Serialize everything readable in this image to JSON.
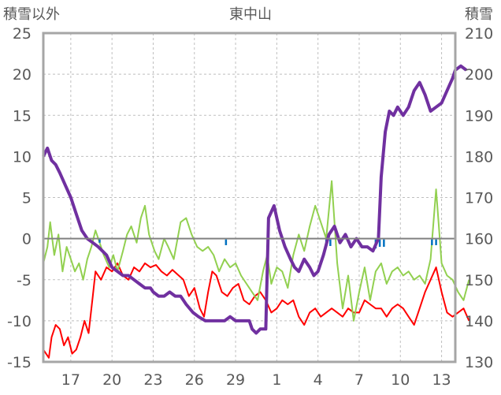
{
  "chart_data": {
    "type": "line",
    "title": "東中山",
    "left_axis_label": "積雪以外",
    "right_axis_label": "積雪",
    "y_left_ticks": [
      25,
      20,
      15,
      10,
      5,
      0,
      -5,
      -10,
      -15
    ],
    "y_left_range": [
      -15,
      25
    ],
    "y_right_ticks": [
      210,
      200,
      190,
      180,
      170,
      160,
      150,
      140,
      130
    ],
    "y_right_range": [
      130,
      210
    ],
    "x_tick_labels": [
      "17",
      "20",
      "23",
      "26",
      "29",
      "1",
      "4",
      "7",
      "10",
      "13"
    ],
    "x_range": [
      0,
      30
    ],
    "x_tick_positions": [
      2,
      5,
      8,
      11,
      14,
      17,
      20,
      23,
      26,
      29
    ],
    "grid": true,
    "colors": {
      "snow_depth": "#7030a0",
      "series_red": "#ff0000",
      "series_green": "#92d050",
      "series_blue": "#0070c0",
      "frame": "#a6a6a6",
      "zero_line": "#808080"
    },
    "series": [
      {
        "axis": "right",
        "color": "#7030a0",
        "points": [
          [
            0.0,
            180
          ],
          [
            0.3,
            182
          ],
          [
            0.6,
            179
          ],
          [
            0.9,
            178
          ],
          [
            1.2,
            176
          ],
          [
            1.6,
            173
          ],
          [
            2.0,
            170
          ],
          [
            2.4,
            166
          ],
          [
            2.8,
            162
          ],
          [
            3.2,
            160
          ],
          [
            3.6,
            159
          ],
          [
            4.0,
            158
          ],
          [
            4.3,
            157
          ],
          [
            4.6,
            156
          ],
          [
            5.0,
            153
          ],
          [
            5.4,
            152
          ],
          [
            5.8,
            151
          ],
          [
            6.2,
            151
          ],
          [
            6.6,
            150
          ],
          [
            7.0,
            149
          ],
          [
            7.4,
            148
          ],
          [
            7.8,
            148
          ],
          [
            8.0,
            147
          ],
          [
            8.4,
            146
          ],
          [
            8.8,
            146
          ],
          [
            9.2,
            147
          ],
          [
            9.6,
            146
          ],
          [
            10.0,
            146
          ],
          [
            10.4,
            144
          ],
          [
            10.9,
            142
          ],
          [
            11.3,
            141
          ],
          [
            11.8,
            140
          ],
          [
            12.3,
            140
          ],
          [
            12.8,
            140
          ],
          [
            13.2,
            140
          ],
          [
            13.6,
            141
          ],
          [
            14.0,
            140
          ],
          [
            14.4,
            140
          ],
          [
            15.0,
            140
          ],
          [
            15.2,
            138
          ],
          [
            15.5,
            137
          ],
          [
            15.8,
            138
          ],
          [
            16.2,
            138
          ],
          [
            16.4,
            165
          ],
          [
            16.8,
            168
          ],
          [
            17.2,
            162
          ],
          [
            17.6,
            158
          ],
          [
            18.0,
            155
          ],
          [
            18.3,
            153
          ],
          [
            18.6,
            152
          ],
          [
            19.0,
            155
          ],
          [
            19.4,
            153
          ],
          [
            19.7,
            151
          ],
          [
            20.0,
            152
          ],
          [
            20.4,
            156
          ],
          [
            20.8,
            161
          ],
          [
            21.2,
            163
          ],
          [
            21.6,
            159
          ],
          [
            22.0,
            161
          ],
          [
            22.4,
            158
          ],
          [
            22.8,
            160
          ],
          [
            23.2,
            158
          ],
          [
            23.6,
            158
          ],
          [
            24.0,
            157
          ],
          [
            24.4,
            160
          ],
          [
            24.6,
            175
          ],
          [
            24.9,
            186
          ],
          [
            25.2,
            191
          ],
          [
            25.5,
            190
          ],
          [
            25.8,
            192
          ],
          [
            26.2,
            190
          ],
          [
            26.6,
            192
          ],
          [
            27.0,
            196
          ],
          [
            27.4,
            198
          ],
          [
            27.8,
            195
          ],
          [
            28.2,
            191
          ],
          [
            28.6,
            192
          ],
          [
            29.0,
            193
          ],
          [
            29.4,
            196
          ],
          [
            29.8,
            199
          ],
          [
            30.0,
            201
          ],
          [
            30.4,
            202
          ],
          [
            30.8,
            201
          ]
        ]
      },
      {
        "axis": "left",
        "color": "#ff0000",
        "points": [
          [
            0.0,
            -13.5
          ],
          [
            0.4,
            -14.5
          ],
          [
            0.6,
            -12
          ],
          [
            0.9,
            -10.5
          ],
          [
            1.2,
            -11
          ],
          [
            1.5,
            -13
          ],
          [
            1.8,
            -12
          ],
          [
            2.1,
            -14
          ],
          [
            2.4,
            -13.5
          ],
          [
            2.7,
            -12
          ],
          [
            3.0,
            -10
          ],
          [
            3.3,
            -11.5
          ],
          [
            3.6,
            -7
          ],
          [
            3.8,
            -4
          ],
          [
            4.2,
            -5
          ],
          [
            4.6,
            -3.5
          ],
          [
            5.0,
            -4
          ],
          [
            5.4,
            -3
          ],
          [
            5.8,
            -4.5
          ],
          [
            6.2,
            -5
          ],
          [
            6.6,
            -3.5
          ],
          [
            7.0,
            -4
          ],
          [
            7.4,
            -3
          ],
          [
            7.8,
            -3.5
          ],
          [
            8.2,
            -3.2
          ],
          [
            8.6,
            -4
          ],
          [
            9.0,
            -4.5
          ],
          [
            9.4,
            -3.8
          ],
          [
            10.2,
            -5
          ],
          [
            10.6,
            -7
          ],
          [
            11.0,
            -6
          ],
          [
            11.4,
            -8.5
          ],
          [
            11.7,
            -9.5
          ],
          [
            12.0,
            -6.5
          ],
          [
            12.3,
            -4
          ],
          [
            12.6,
            -4.5
          ],
          [
            13.0,
            -6.5
          ],
          [
            13.4,
            -7
          ],
          [
            13.8,
            -6
          ],
          [
            14.2,
            -5.5
          ],
          [
            14.6,
            -7.5
          ],
          [
            15.0,
            -8
          ],
          [
            15.4,
            -7
          ],
          [
            15.8,
            -6.5
          ],
          [
            16.2,
            -7.5
          ],
          [
            16.6,
            -9
          ],
          [
            17.0,
            -8.5
          ],
          [
            17.4,
            -7.5
          ],
          [
            17.8,
            -8
          ],
          [
            18.2,
            -7.5
          ],
          [
            18.6,
            -9.5
          ],
          [
            19.0,
            -10.5
          ],
          [
            19.4,
            -9
          ],
          [
            19.8,
            -8.5
          ],
          [
            20.2,
            -9.5
          ],
          [
            20.6,
            -9
          ],
          [
            21.0,
            -8.5
          ],
          [
            21.4,
            -9
          ],
          [
            21.8,
            -9.5
          ],
          [
            22.2,
            -8.5
          ],
          [
            22.6,
            -9
          ],
          [
            23.0,
            -9
          ],
          [
            23.4,
            -7.5
          ],
          [
            23.8,
            -8
          ],
          [
            24.2,
            -8.5
          ],
          [
            24.6,
            -8.5
          ],
          [
            25.0,
            -9.5
          ],
          [
            25.4,
            -8.5
          ],
          [
            25.8,
            -8
          ],
          [
            26.2,
            -8.5
          ],
          [
            26.6,
            -9.5
          ],
          [
            27.0,
            -10.5
          ],
          [
            27.4,
            -8.5
          ],
          [
            27.8,
            -6.5
          ],
          [
            28.2,
            -5
          ],
          [
            28.6,
            -3.5
          ],
          [
            29.0,
            -6.5
          ],
          [
            29.4,
            -9
          ],
          [
            29.8,
            -9.5
          ],
          [
            30.2,
            -9
          ],
          [
            30.6,
            -8.5
          ],
          [
            31.0,
            -10
          ]
        ]
      },
      {
        "axis": "left",
        "color": "#92d050",
        "points": [
          [
            0.0,
            -3
          ],
          [
            0.3,
            -1
          ],
          [
            0.5,
            2
          ],
          [
            0.8,
            -2
          ],
          [
            1.1,
            0.5
          ],
          [
            1.4,
            -4
          ],
          [
            1.7,
            -1
          ],
          [
            2.0,
            -2.5
          ],
          [
            2.3,
            -4
          ],
          [
            2.6,
            -3
          ],
          [
            2.9,
            -5
          ],
          [
            3.2,
            -2.5
          ],
          [
            3.5,
            -1
          ],
          [
            3.8,
            1
          ],
          [
            4.1,
            -0.5
          ],
          [
            4.4,
            -2
          ],
          [
            4.8,
            -3.5
          ],
          [
            5.1,
            -2
          ],
          [
            5.4,
            -4
          ],
          [
            5.8,
            -1.5
          ],
          [
            6.1,
            0.5
          ],
          [
            6.4,
            1.5
          ],
          [
            6.8,
            -0.5
          ],
          [
            7.1,
            2.5
          ],
          [
            7.4,
            4
          ],
          [
            7.7,
            0.5
          ],
          [
            8.1,
            -1.5
          ],
          [
            8.4,
            -2.5
          ],
          [
            8.8,
            0
          ],
          [
            9.1,
            -1
          ],
          [
            9.5,
            -2.5
          ],
          [
            10.0,
            2
          ],
          [
            10.4,
            2.5
          ],
          [
            10.8,
            0.5
          ],
          [
            11.2,
            -1
          ],
          [
            11.6,
            -1.5
          ],
          [
            12.0,
            -1
          ],
          [
            12.4,
            -2
          ],
          [
            12.8,
            -4
          ],
          [
            13.2,
            -2.5
          ],
          [
            13.6,
            -3.5
          ],
          [
            14.0,
            -3
          ],
          [
            14.4,
            -4.5
          ],
          [
            14.8,
            -5.5
          ],
          [
            15.2,
            -6.5
          ],
          [
            15.6,
            -7.5
          ],
          [
            16.0,
            -4
          ],
          [
            16.3,
            -2
          ],
          [
            16.6,
            -5.5
          ],
          [
            17.0,
            -3.5
          ],
          [
            17.4,
            -4
          ],
          [
            17.8,
            -6
          ],
          [
            18.2,
            -2
          ],
          [
            18.6,
            0.5
          ],
          [
            19.0,
            -1.5
          ],
          [
            19.4,
            1.5
          ],
          [
            19.8,
            4
          ],
          [
            20.2,
            2
          ],
          [
            20.6,
            0
          ],
          [
            21.0,
            7
          ],
          [
            21.4,
            -3
          ],
          [
            21.8,
            -8.5
          ],
          [
            22.2,
            -4.5
          ],
          [
            22.6,
            -10
          ],
          [
            23.0,
            -6.5
          ],
          [
            23.4,
            -3.5
          ],
          [
            23.8,
            -7.5
          ],
          [
            24.2,
            -4
          ],
          [
            24.6,
            -3
          ],
          [
            25.0,
            -5.5
          ],
          [
            25.4,
            -4
          ],
          [
            25.8,
            -3.5
          ],
          [
            26.2,
            -4.5
          ],
          [
            26.6,
            -4
          ],
          [
            27.0,
            -5
          ],
          [
            27.4,
            -4.5
          ],
          [
            27.8,
            -5.5
          ],
          [
            28.2,
            -2.5
          ],
          [
            28.6,
            6
          ],
          [
            29.0,
            -3
          ],
          [
            29.4,
            -4.5
          ],
          [
            29.8,
            -5
          ],
          [
            30.2,
            -6.5
          ],
          [
            30.6,
            -7.5
          ],
          [
            31.0,
            -5
          ]
        ]
      },
      {
        "axis": "left",
        "color": "#0070c0",
        "points": [
          [
            4.1,
            -0.5
          ],
          [
            4.1,
            -0.1
          ],
          [
            13.3,
            -0.8
          ],
          [
            13.3,
            -0.1
          ],
          [
            20.6,
            -0.9
          ],
          [
            20.6,
            -0.1
          ],
          [
            20.9,
            -0.9
          ],
          [
            20.9,
            -0.1
          ],
          [
            24.2,
            -1.2
          ],
          [
            24.2,
            -0.1
          ],
          [
            24.5,
            -1.0
          ],
          [
            24.5,
            -0.1
          ],
          [
            24.8,
            -1.0
          ],
          [
            24.8,
            -0.1
          ],
          [
            28.3,
            -0.8
          ],
          [
            28.3,
            -0.1
          ],
          [
            28.6,
            -0.8
          ],
          [
            28.6,
            -0.1
          ]
        ]
      }
    ]
  }
}
